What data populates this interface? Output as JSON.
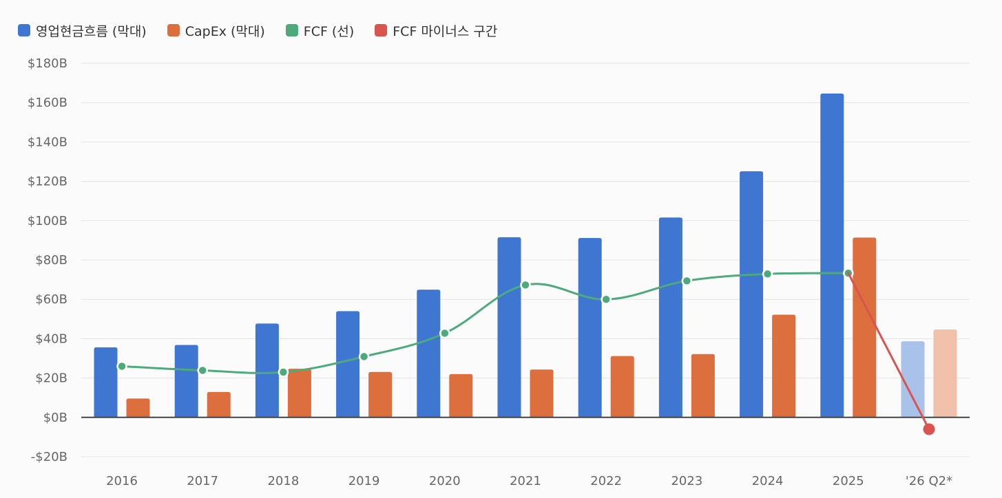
{
  "legend": [
    {
      "label": "영업현금흐름 (막대)",
      "color": "#3f76d2"
    },
    {
      "label": "CapEx (막대)",
      "color": "#dd6f3f"
    },
    {
      "label": "FCF (선)",
      "color": "#4daa7c"
    },
    {
      "label": "FCF 마이너스 구간",
      "color": "#d9534f"
    }
  ],
  "chart_data": {
    "type": "bar",
    "categories": [
      "2016",
      "2017",
      "2018",
      "2019",
      "2020",
      "2021",
      "2022",
      "2023",
      "2024",
      "2025",
      "'26 Q2*"
    ],
    "series": [
      {
        "name": "영업현금흐름 (막대)",
        "kind": "bar",
        "color": "#3f76d2",
        "light_color": "#a9c2ea",
        "values": [
          35.6,
          36.8,
          47.7,
          54.0,
          64.9,
          91.6,
          91.2,
          101.6,
          125.1,
          164.6,
          38.7
        ]
      },
      {
        "name": "CapEx (막대)",
        "kind": "bar",
        "color": "#dd6f3f",
        "light_color": "#f1c0aa",
        "values": [
          9.6,
          12.9,
          24.7,
          23.1,
          22.0,
          24.3,
          31.2,
          32.2,
          52.2,
          91.4,
          44.7
        ]
      },
      {
        "name": "FCF (선)",
        "kind": "line",
        "color": "#4daa7c",
        "values": [
          26.0,
          23.9,
          23.0,
          30.9,
          42.8,
          67.3,
          60.0,
          69.4,
          72.9,
          73.3,
          null
        ]
      },
      {
        "name": "FCF 마이너스 구간",
        "kind": "line",
        "color": "#d9534f",
        "values": [
          null,
          null,
          null,
          null,
          null,
          null,
          null,
          null,
          null,
          73.3,
          -6.0
        ]
      }
    ],
    "light_categories": [
      "'26 Q2*"
    ],
    "y_tick_labels": [
      "-$20B",
      "$0B",
      "$20B",
      "$40B",
      "$60B",
      "$80B",
      "$100B",
      "$120B",
      "$140B",
      "$160B",
      "$180B"
    ],
    "y_ticks": [
      -20,
      0,
      20,
      40,
      60,
      80,
      100,
      120,
      140,
      160,
      180
    ],
    "ylim": [
      -20,
      180
    ],
    "grid": true,
    "legend_position": "top-left",
    "zero_line": true
  }
}
